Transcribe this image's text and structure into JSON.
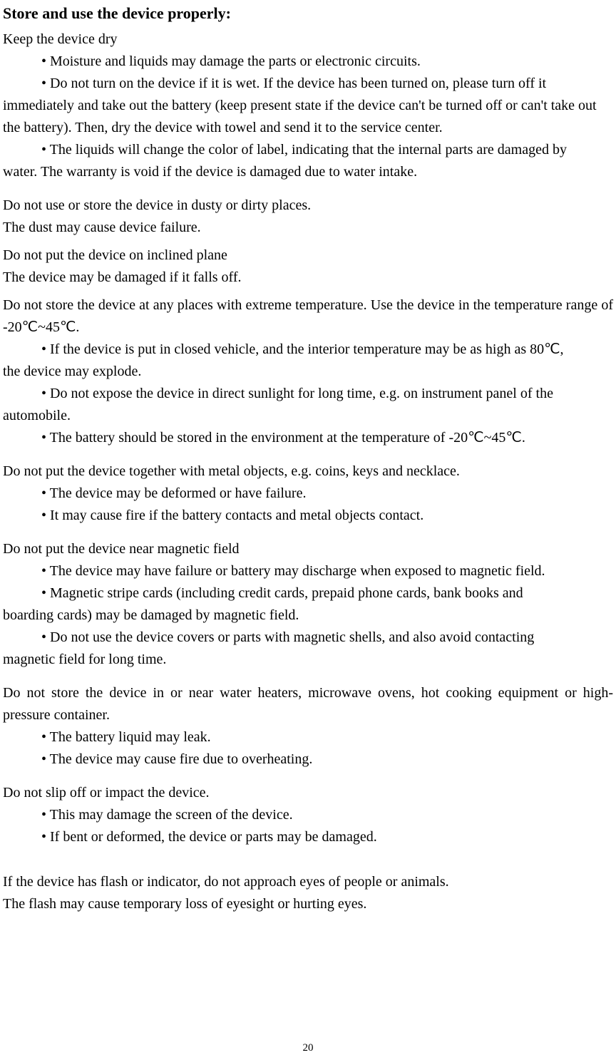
{
  "heading": "Store and use the device properly:",
  "s1": {
    "title": "Keep the device dry",
    "b1": "• Moisture and liquids may damage the parts or electronic circuits.",
    "b2_lead": "• Do not turn on the device if it is wet. If the device has been turned on, please turn off it",
    "b2_cont": "immediately and take out the battery (keep present state if the device can't be turned off or can't take out the battery). Then, dry the device with towel and send it to the service center.",
    "b3_lead": "• The liquids will change the color of label, indicating that the internal parts are damaged by",
    "b3_cont": "water. The warranty is void if the device is damaged due to water intake."
  },
  "s2": {
    "line1": "Do not use or store the device in dusty or dirty places.",
    "line2": "The dust may cause device failure."
  },
  "s3": {
    "line1": "Do not put the device on inclined plane",
    "line2": "The device may be damaged if it falls off."
  },
  "s4": {
    "line1_a": "Do not store the device at any places with extreme temperature. ",
    "line1_b": "Use the device in the temperature range of -20℃~45℃.",
    "b1_lead": "• If the device is put in closed vehicle, and the interior temperature may be as high as 80℃,",
    "b1_cont": "the device may explode.",
    "b2_lead": "• Do not expose the device in direct sunlight for long time, e.g. on instrument panel of the",
    "b2_cont": "automobile.",
    "b3": "• The battery should be stored in the environment at the temperature of -20℃~45℃."
  },
  "s5": {
    "line1": "Do not put the device together with metal objects, e.g. coins, keys and necklace.",
    "b1": "• The device may be deformed or have failure.",
    "b2": "• It may cause fire if the battery contacts and metal objects contact."
  },
  "s6": {
    "line1": "Do not put the device near magnetic field",
    "b1": "• The device may have failure or battery may discharge when exposed to magnetic field.",
    "b2_lead": "• Magnetic stripe cards (including credit cards, prepaid phone cards, bank books and",
    "b2_cont": "boarding cards) may be damaged by magnetic field.",
    "b3_lead": "• Do not use the device covers or parts with magnetic shells, and also avoid contacting",
    "b3_cont": "magnetic field for long time."
  },
  "s7": {
    "line1": "Do not store the device in or near water heaters, microwave ovens, hot cooking equipment or high-pressure container.",
    "b1": "• The battery liquid may leak.",
    "b2": "• The device may cause fire due to overheating."
  },
  "s8": {
    "line1": "Do not slip off or impact the device.",
    "b1": "• This may damage the screen of the device.",
    "b2": "• If bent or deformed, the device or parts may be damaged."
  },
  "s9": {
    "line1": "If the device has flash or indicator, do not approach eyes of people or animals.",
    "line2": "The flash may cause temporary loss of eyesight or hurting eyes."
  },
  "pageNumber": "20"
}
